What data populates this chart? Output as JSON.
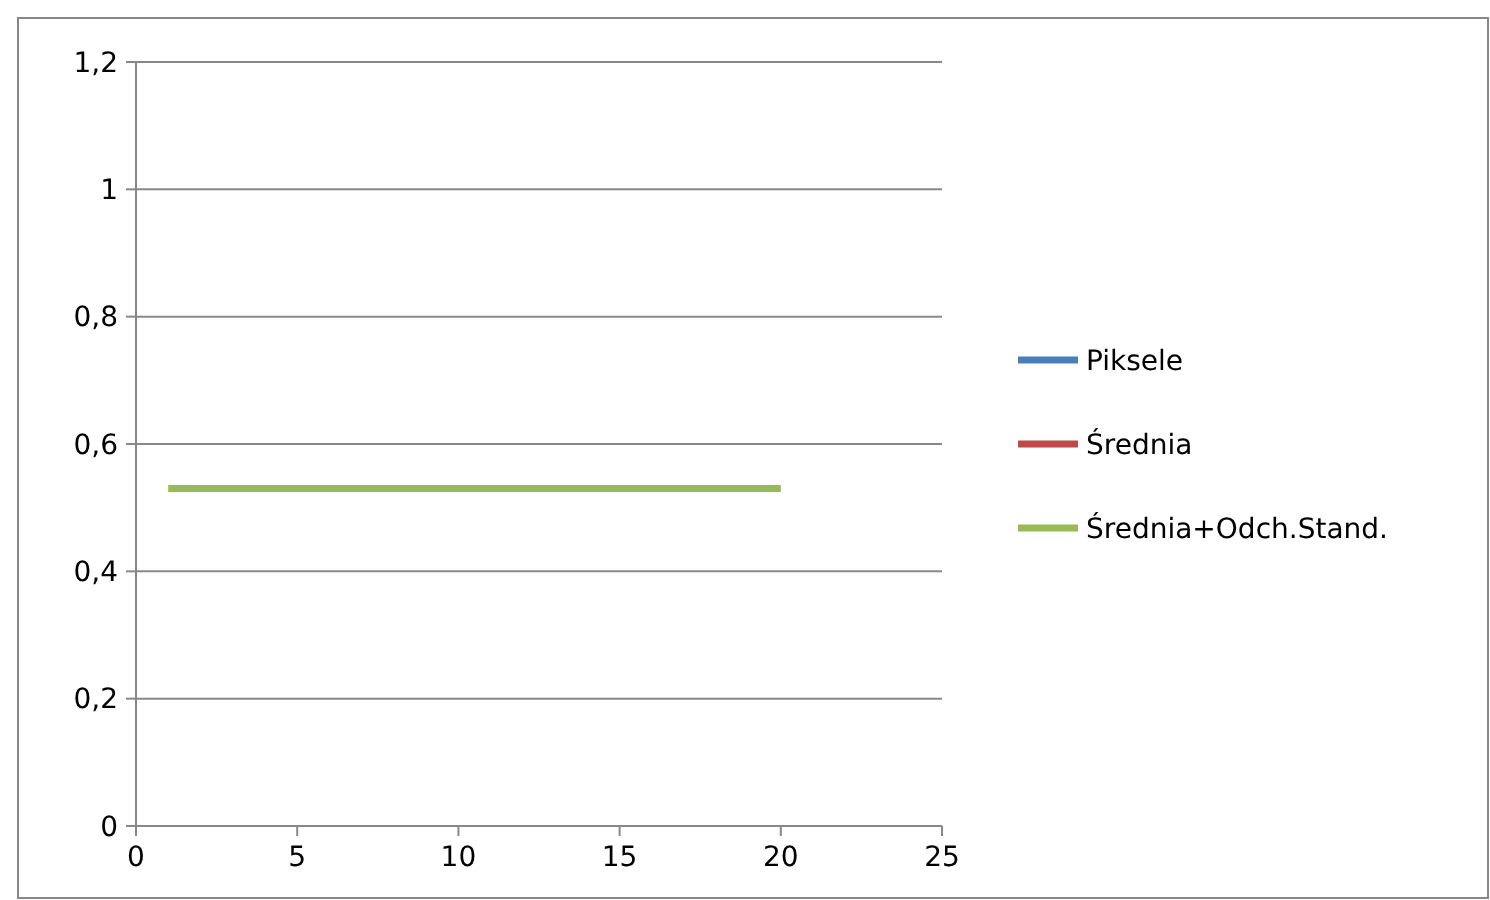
{
  "chart_data": {
    "type": "line",
    "x": [
      1,
      20
    ],
    "series": [
      {
        "name": "Piksele",
        "color": "#4a7ebb",
        "values": [
          null,
          null
        ]
      },
      {
        "name": "Średnia",
        "color": "#be4b48",
        "values": [
          null,
          null
        ]
      },
      {
        "name": "Średnia+Odch.Stand.",
        "color": "#98b954",
        "values": [
          0.53,
          0.53
        ]
      }
    ],
    "xlim": [
      0,
      25
    ],
    "xticks": [
      0,
      5,
      10,
      15,
      20,
      25
    ],
    "ylim": [
      0,
      1.2
    ],
    "yticks": [
      0,
      {
        "value": 0.2,
        "label": "0,2"
      },
      {
        "value": 0.4,
        "label": "0,4"
      },
      {
        "value": 0.6,
        "label": "0,6"
      },
      {
        "value": 0.8,
        "label": "0,8"
      },
      1,
      {
        "value": 1.2,
        "label": "1,2"
      }
    ],
    "grid": "y",
    "legend": "right",
    "marker": "none",
    "line_style": "solid"
  }
}
